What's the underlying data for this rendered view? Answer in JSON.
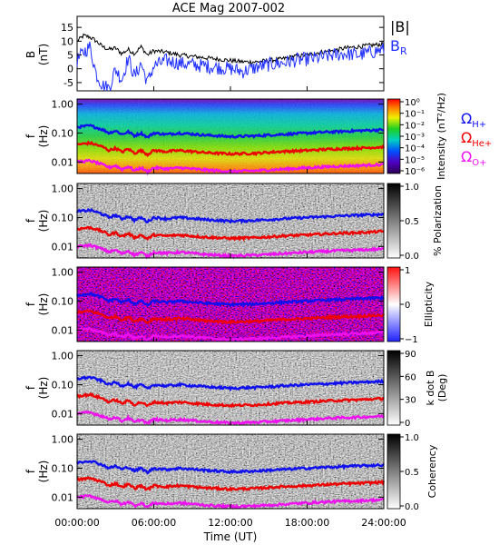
{
  "colors": {
    "total_field": "#000000",
    "radial_field": "#1f2fff",
    "proton_gyro": "#1010ee",
    "helium_gyro": "#ee0000",
    "oxygen_gyro": "#ee10ee"
  },
  "chart_data": {
    "title": "ACE Mag 2007-002",
    "xlabel": "Time (UT)",
    "x_ticks": [
      "00:00:00",
      "06:00:00",
      "12:00:00",
      "18:00:00",
      "24:00:00"
    ],
    "x_tick_hours": [
      0,
      6,
      12,
      18,
      24
    ],
    "xlim_hours": [
      0,
      24
    ],
    "panels": [
      {
        "id": "field",
        "type": "line",
        "ylabel_top": "B",
        "ylabel_bottom": "(nT)",
        "ylim": [
          -8,
          19
        ],
        "y_ticks": [
          -5,
          0,
          5,
          10,
          15
        ],
        "y_tick_labels": [
          "-5",
          "0",
          "5",
          "10",
          "15"
        ],
        "legend": [
          {
            "base": "|B|",
            "sub": "",
            "color_key": "total_field"
          },
          {
            "base": "B",
            "sub": "R",
            "color_key": "radial_field"
          }
        ],
        "series": [
          {
            "name": "|B|",
            "color_key": "total_field",
            "x": [
              0,
              0.5,
              1,
              1.5,
              2,
              2.5,
              3,
              3.5,
              4,
              4.5,
              5,
              5.5,
              6,
              7,
              8,
              9,
              10,
              11,
              12,
              13,
              14,
              15,
              16,
              17,
              18,
              19,
              20,
              21,
              22,
              23,
              24
            ],
            "y": [
              10,
              12,
              11.5,
              10,
              8,
              7,
              7.5,
              5.5,
              7,
              5.5,
              8,
              5,
              6.5,
              6,
              5,
              4.5,
              4,
              3.5,
              3,
              2.5,
              2.5,
              3,
              3.5,
              4.5,
              5,
              6,
              6.5,
              7.5,
              8,
              8.5,
              9
            ]
          },
          {
            "name": "B_R",
            "color_key": "radial_field",
            "x": [
              0,
              0.5,
              1,
              1.5,
              2,
              2.5,
              3,
              3.5,
              4,
              4.5,
              5,
              5.5,
              6,
              7,
              8,
              9,
              10,
              11,
              12,
              13,
              14,
              15,
              16,
              17,
              18,
              19,
              20,
              21,
              22,
              23,
              24
            ],
            "y": [
              3,
              6,
              8,
              -2,
              -6,
              -7,
              0,
              -4,
              4,
              -3,
              2,
              -5,
              1,
              3,
              2,
              1.5,
              1,
              0.5,
              0,
              -1,
              0.5,
              1.5,
              2,
              3,
              3.5,
              4,
              5,
              5.5,
              5,
              6,
              7
            ]
          }
        ]
      },
      {
        "id": "intensity",
        "type": "heatmap",
        "ylabel_top": "f",
        "ylabel_bottom": "(Hz)",
        "yscale": "log",
        "ylim": [
          0.004,
          1.5
        ],
        "y_ticks": [
          0.01,
          0.1,
          1.0
        ],
        "y_tick_labels": [
          "0.01",
          "0.10",
          "1.00"
        ],
        "colorbar": {
          "label": "Intensity (nT²/Hz)",
          "colormap": "rainbow",
          "tick_labels": [
            "10⁰",
            "10⁻¹",
            "10⁻²",
            "10⁻³",
            "10⁻⁴",
            "10⁻⁵",
            "10⁻⁶"
          ],
          "range": [
            -6,
            0
          ]
        },
        "gyro_legend": [
          {
            "base": "Ω",
            "sub": "H+",
            "color_key": "proton_gyro"
          },
          {
            "base": "Ω",
            "sub": "He+",
            "color_key": "helium_gyro"
          },
          {
            "base": "Ω",
            "sub": "O+",
            "color_key": "oxygen_gyro"
          }
        ]
      },
      {
        "id": "polarization",
        "type": "heatmap",
        "ylabel_top": "f",
        "ylabel_bottom": "(Hz)",
        "yscale": "log",
        "ylim": [
          0.004,
          1.5
        ],
        "y_ticks": [
          0.01,
          0.1,
          1.0
        ],
        "y_tick_labels": [
          "0.01",
          "0.10",
          "1.00"
        ],
        "colorbar": {
          "label": "% Polarization",
          "colormap": "gray",
          "tick_labels": [
            "1.0",
            "0.5",
            "0.0"
          ],
          "range": [
            0,
            1
          ]
        }
      },
      {
        "id": "ellipticity",
        "type": "heatmap",
        "ylabel_top": "f",
        "ylabel_bottom": "(Hz)",
        "yscale": "log",
        "ylim": [
          0.004,
          1.5
        ],
        "y_ticks": [
          0.01,
          0.1,
          1.0
        ],
        "y_tick_labels": [
          "0.01",
          "0.10",
          "1.00"
        ],
        "colorbar": {
          "label": "Ellipticity",
          "colormap": "blue-white-red",
          "tick_labels": [
            "1",
            "0",
            "−1"
          ],
          "range": [
            -1,
            1
          ]
        }
      },
      {
        "id": "kdotb",
        "type": "heatmap",
        "ylabel_top": "f",
        "ylabel_bottom": "(Hz)",
        "yscale": "log",
        "ylim": [
          0.004,
          1.5
        ],
        "y_ticks": [
          0.01,
          0.1,
          1.0
        ],
        "y_tick_labels": [
          "0.01",
          "0.10",
          "1.00"
        ],
        "colorbar": {
          "label": "k dot B",
          "label2": "(Deg)",
          "colormap": "gray",
          "tick_labels": [
            "90",
            "60",
            "30",
            "0"
          ],
          "range": [
            0,
            90
          ]
        }
      },
      {
        "id": "coherency",
        "type": "heatmap",
        "ylabel_top": "f",
        "ylabel_bottom": "(Hz)",
        "yscale": "log",
        "ylim": [
          0.004,
          1.5
        ],
        "y_ticks": [
          0.01,
          0.1,
          1.0
        ],
        "y_tick_labels": [
          "0.01",
          "0.10",
          "1.00"
        ],
        "colorbar": {
          "label": "Coherency",
          "colormap": "gray",
          "tick_labels": [
            "1.0",
            "0.5",
            "0.0"
          ],
          "range": [
            0,
            1
          ]
        }
      }
    ],
    "gyrofrequency_lines": [
      {
        "name": "Ω_H+",
        "color_key": "proton_gyro",
        "x": [
          0,
          1,
          2,
          2.5,
          3,
          3.5,
          4,
          4.5,
          5,
          5.5,
          6,
          7,
          8,
          10,
          12,
          14,
          16,
          18,
          20,
          22,
          24
        ],
        "y": [
          0.16,
          0.18,
          0.13,
          0.1,
          0.12,
          0.09,
          0.11,
          0.08,
          0.1,
          0.07,
          0.1,
          0.09,
          0.1,
          0.085,
          0.075,
          0.08,
          0.09,
          0.1,
          0.11,
          0.12,
          0.13
        ]
      },
      {
        "name": "Ω_He+",
        "color_key": "helium_gyro",
        "x": [
          0,
          1,
          2,
          2.5,
          3,
          3.5,
          4,
          4.5,
          5,
          5.5,
          6,
          7,
          8,
          10,
          12,
          14,
          16,
          18,
          20,
          22,
          24
        ],
        "y": [
          0.04,
          0.045,
          0.033,
          0.025,
          0.03,
          0.022,
          0.028,
          0.02,
          0.025,
          0.018,
          0.025,
          0.023,
          0.025,
          0.021,
          0.019,
          0.02,
          0.023,
          0.025,
          0.028,
          0.03,
          0.033
        ]
      },
      {
        "name": "Ω_O+",
        "color_key": "oxygen_gyro",
        "x": [
          0,
          1,
          2,
          2.5,
          3,
          3.5,
          4,
          4.5,
          5,
          5.5,
          6,
          7,
          8,
          10,
          12,
          14,
          16,
          18,
          20,
          22,
          24
        ],
        "y": [
          0.01,
          0.011,
          0.008,
          0.0065,
          0.0075,
          0.0055,
          0.007,
          0.005,
          0.0063,
          0.0045,
          0.0063,
          0.0058,
          0.0063,
          0.0053,
          0.0047,
          0.005,
          0.0056,
          0.0063,
          0.007,
          0.0075,
          0.0082
        ]
      }
    ]
  }
}
